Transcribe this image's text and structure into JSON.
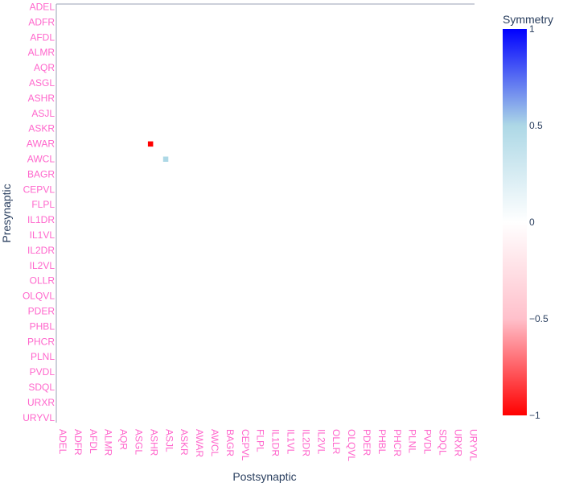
{
  "chart_data": {
    "type": "heatmap",
    "x_labels": [
      "ADEL",
      "ADFR",
      "AFDL",
      "ALMR",
      "AQR",
      "ASGL",
      "ASHR",
      "ASJL",
      "ASKR",
      "AWAR",
      "AWCL",
      "BAGR",
      "CEPVL",
      "FLPL",
      "IL1DR",
      "IL1VL",
      "IL2DR",
      "IL2VL",
      "OLLR",
      "OLQVL",
      "PDER",
      "PHBL",
      "PHCR",
      "PLNL",
      "PVDL",
      "SDQL",
      "URXR",
      "URYVL"
    ],
    "y_labels": [
      "ADEL",
      "ADFR",
      "AFDL",
      "ALMR",
      "AQR",
      "ASGL",
      "ASHR",
      "ASJL",
      "ASKR",
      "AWAR",
      "AWCL",
      "BAGR",
      "CEPVL",
      "FLPL",
      "IL1DR",
      "IL1VL",
      "IL2DR",
      "IL2VL",
      "OLLR",
      "OLQVL",
      "PDER",
      "PHBL",
      "PHCR",
      "PLNL",
      "PVDL",
      "SDQL",
      "URXR",
      "URYVL"
    ],
    "xlabel": "Postsynaptic",
    "ylabel": "Presynaptic",
    "colorbar": {
      "title": "Symmetry",
      "range": [
        -1,
        1
      ],
      "ticks": [
        1,
        0.5,
        0,
        -0.5,
        -1
      ],
      "tick_labels": [
        "1",
        "0.5",
        "0",
        "−0.5",
        "−1"
      ],
      "colorscale": [
        "#ff0000",
        "#ffc0cb",
        "#ffffff",
        "#add8e6",
        "#0000ff"
      ]
    },
    "cells": [
      {
        "x": "ASHR",
        "y": "AWAR",
        "value": -1,
        "color": "#ff0000"
      },
      {
        "x": "ASJL",
        "y": "AWCL",
        "value": 0.5,
        "color": "#add8e6"
      }
    ],
    "grid": false
  }
}
